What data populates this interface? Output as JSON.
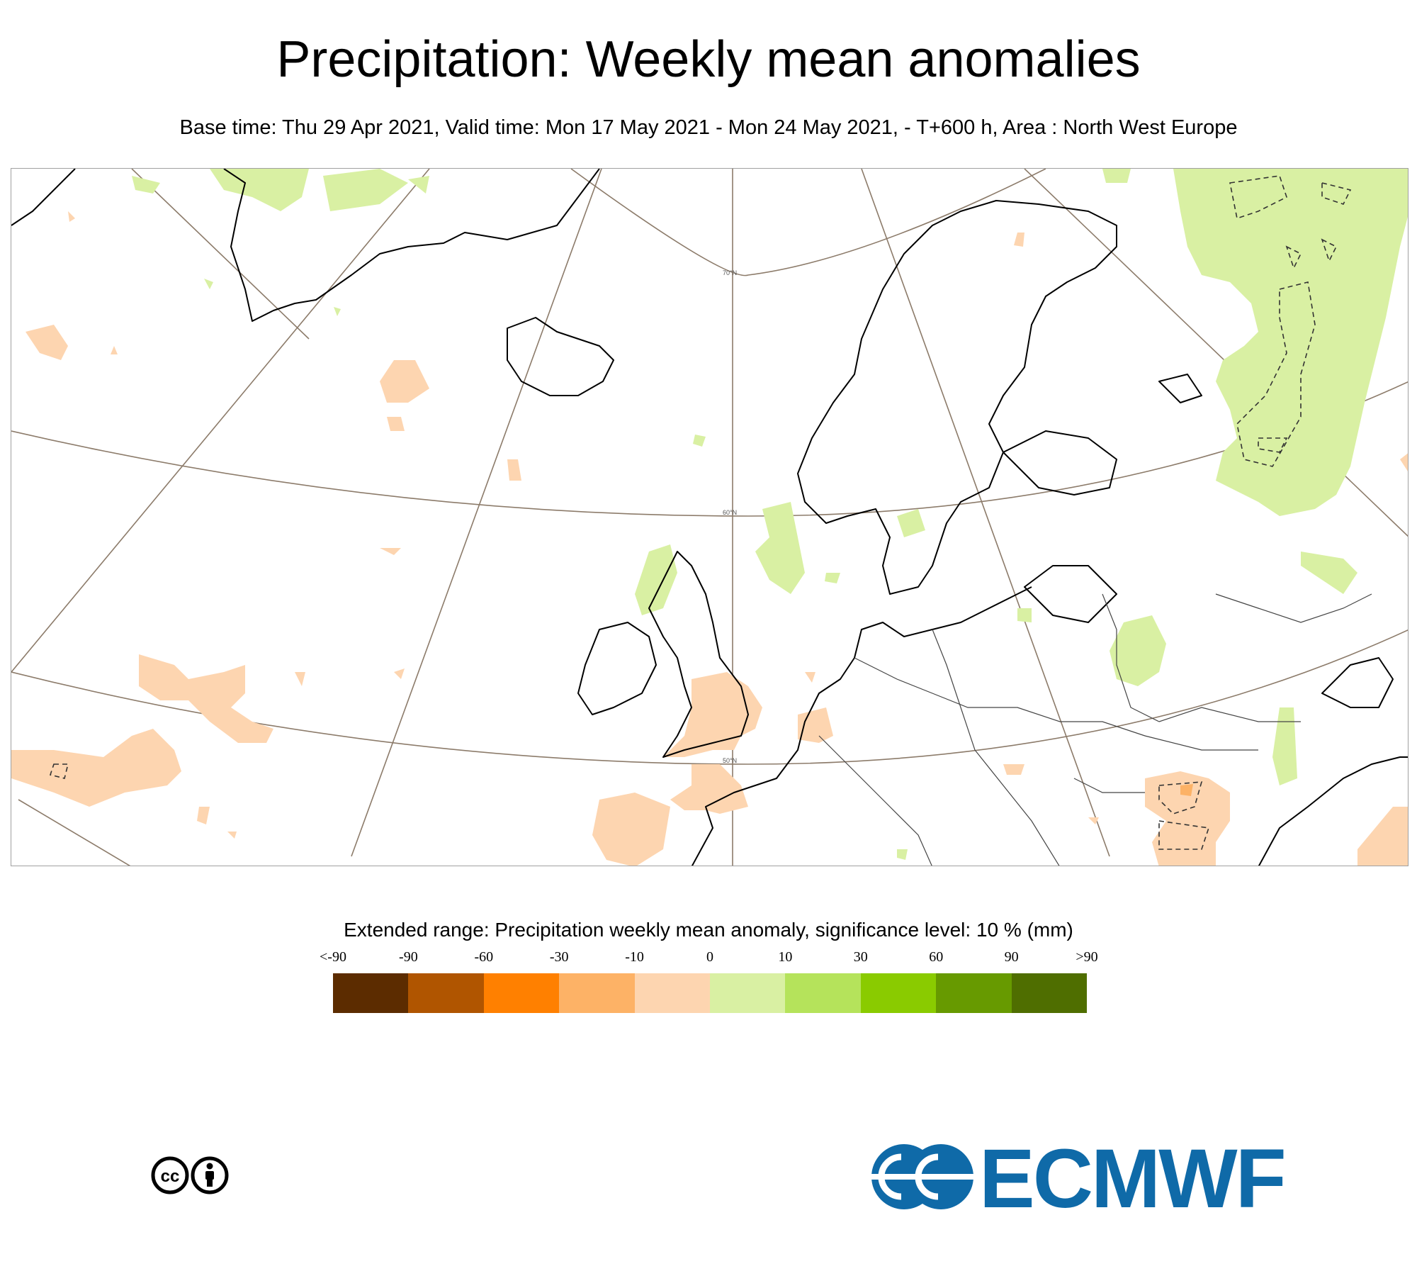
{
  "header": {
    "title": "Precipitation: Weekly mean anomalies",
    "subtitle": "Base time: Thu 29 Apr 2021, Valid time: Mon 17 May 2021 - Mon 24 May 2021, - T+600 h, Area : North West Europe"
  },
  "map": {
    "area": "North West Europe",
    "latitude_labels": [
      "70°N",
      "60°N",
      "50°N"
    ],
    "colors": {
      "land_outline": "#000000",
      "graticule": "#8c7b6a",
      "negative_light": "#fdd5b0",
      "negative_mid": "#fcb266",
      "positive_light": "#d9f0a3"
    }
  },
  "legend": {
    "title": "Extended range: Precipitation weekly mean anomaly, significance level: 10 % (mm)",
    "ticks": [
      "<-90",
      "-90",
      "-60",
      "-30",
      "-10",
      "0",
      "10",
      "30",
      "60",
      "90",
      ">90"
    ],
    "colors": [
      "#5c2c00",
      "#b05500",
      "#ff8000",
      "#fdb266",
      "#fdd5b0",
      "#d9f0a3",
      "#b5e35b",
      "#8acb00",
      "#679a00",
      "#4f6e00"
    ]
  },
  "footer": {
    "license_icons": [
      "cc-icon",
      "by-attribution-icon"
    ],
    "logo_text": "ECMWF"
  }
}
